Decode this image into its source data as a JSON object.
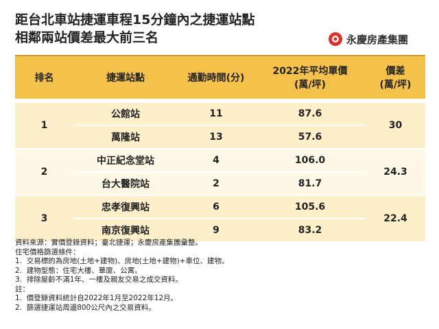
{
  "header": {
    "title_lines": [
      "距台北車站捷運車程15分鐘內之捷運站點",
      "相鄰兩站價差最大前三名"
    ],
    "brand": "永慶房產集團"
  },
  "table": {
    "columns": [
      "排名",
      "捷運站點",
      "通勤時間(分)",
      "2022年平均單價\n(萬/坪)",
      "價差\n(萬/坪)"
    ],
    "groups": [
      {
        "rank": 1,
        "diff": 30,
        "stations": [
          {
            "name": "公館站",
            "minutes": 11,
            "price": 87.6
          },
          {
            "name": "萬隆站",
            "minutes": 13,
            "price": 57.6
          }
        ]
      },
      {
        "rank": 2,
        "diff": 24.3,
        "stations": [
          {
            "name": "中正紀念堂站",
            "minutes": 4,
            "price": "106.0"
          },
          {
            "name": "台大醫院站",
            "minutes": 2,
            "price": 81.7
          }
        ]
      },
      {
        "rank": 3,
        "diff": 22.4,
        "stations": [
          {
            "name": "忠孝復興站",
            "minutes": 6,
            "price": 105.6
          },
          {
            "name": "南京復興站",
            "minutes": 9,
            "price": 83.2
          }
        ]
      }
    ]
  },
  "notes": [
    "資料來源：實價登錄資料；臺北捷運；永慶房產集團彙整。",
    "住宅價格篩選條件：",
    "1.  交易標的為房地(土地+建物)、房地(土地+建物)+車位、建物。",
    "2.  建物型態：住宅大樓、華廈、公寓。",
    "3.  排除屋齡不滿1年、一樓及親友交易之成交資料。",
    "註：",
    "1.  價登錄資料統計自2022年1月至2022年12月。",
    "2.  篩選捷運站周邊800公尺內之交易資料。"
  ]
}
